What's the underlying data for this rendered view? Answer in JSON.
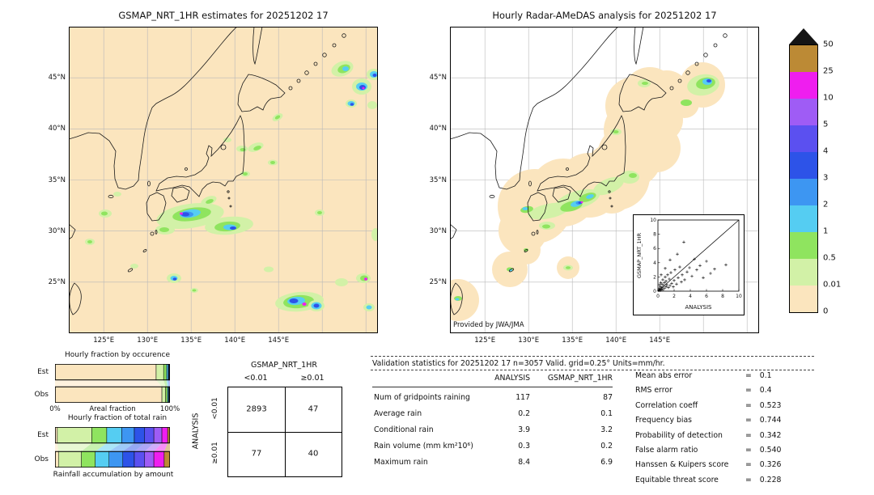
{
  "left_map": {
    "title": "GSMAP_NRT_1HR estimates for 20251202 17",
    "lat_labels": [
      "45°N",
      "40°N",
      "35°N",
      "30°N",
      "25°N"
    ],
    "lon_labels": [
      "125°E",
      "130°E",
      "135°E",
      "140°E",
      "145°E"
    ]
  },
  "right_map": {
    "title": "Hourly Radar-AMeDAS analysis for 20251202 17",
    "credit": "Provided by JWA/JMA",
    "lat_labels": [
      "45°N",
      "40°N",
      "35°N",
      "30°N",
      "25°N"
    ],
    "lon_labels": [
      "125°E",
      "130°E",
      "135°E",
      "140°E",
      "145°E"
    ]
  },
  "colorbar": {
    "unit": "mm/hr"
  },
  "occurrence": {
    "title": "Hourly fraction by occurence",
    "row_labels": [
      "Est",
      "Obs"
    ],
    "axis_left": "0%",
    "axis_label": "Areal fraction",
    "axis_right": "100%"
  },
  "totalrain": {
    "title": "Hourly fraction of total rain",
    "row_labels": [
      "Est",
      "Obs"
    ],
    "caption": "Rainfall accumulation by amount"
  },
  "contingency": {
    "col_axis": "GSMAP_NRT_1HR",
    "row_axis": "ANALYSIS",
    "col_headers": [
      "<0.01",
      "≥0.01"
    ],
    "row_headers": [
      "<0.01",
      "≥0.01"
    ]
  },
  "stats": {
    "title": "Validation statistics for 20251202 17  n=3057 Valid. grid=0.25° Units=mm/hr.",
    "eq": "="
  },
  "chart_data": [
    {
      "type": "heatmap",
      "title": "GSMAP_NRT_1HR estimates for 20251202 17",
      "xlabel": "longitude",
      "ylabel": "latitude",
      "x_ticks": [
        "125°E",
        "130°E",
        "135°E",
        "140°E",
        "145°E"
      ],
      "y_ticks": [
        "45°N",
        "40°N",
        "35°N",
        "30°N",
        "25°N"
      ],
      "units": "mm/hr",
      "scale": {
        "thresholds": [
          0,
          0.01,
          0.5,
          1,
          2,
          3,
          4,
          5,
          10,
          25,
          50
        ],
        "colors": [
          "#FBE5BE",
          "#D2F1A7",
          "#8FE45F",
          "#55CDF2",
          "#3D96F2",
          "#2D53E8",
          "#5B50F0",
          "#9F5CF5",
          "#EF1EEF",
          "#BC8A35"
        ],
        "over_color": "#151515"
      },
      "description": "Scattered rain cells over SW Japan, the Pacific south of Japan and NE of Hokkaido; pale-green patches with green/cyan/blue cores and isolated magenta maxima on a cream zero-rain background."
    },
    {
      "type": "heatmap",
      "title": "Hourly Radar-AMeDAS analysis for 20251202 17",
      "credit": "Provided by JWA/JMA",
      "xlabel": "longitude",
      "ylabel": "latitude",
      "x_ticks": [
        "125°E",
        "130°E",
        "135°E",
        "140°E",
        "145°E"
      ],
      "y_ticks": [
        "45°N",
        "40°N",
        "35°N",
        "30°N",
        "25°N"
      ],
      "units": "mm/hr",
      "scale": {
        "thresholds": [
          0,
          0.01,
          0.5,
          1,
          2,
          3,
          4,
          5,
          10,
          25,
          50
        ],
        "colors": [
          "#FBE5BE",
          "#D2F1A7",
          "#8FE45F",
          "#55CDF2",
          "#3D96F2",
          "#2D53E8",
          "#5B50F0",
          "#9F5CF5",
          "#EF1EEF",
          "#BC8A35"
        ],
        "over_color": "#151515"
      },
      "description": "Radar-AMeDAS analysis shown only inside cream radar-coverage circles around the Japanese archipelago; a green rain band with cyan/blue cores runs along the Pacific coast from Kyushu to Kanto, plus a cell NE of Hokkaido; white background outside coverage."
    },
    {
      "type": "scatter",
      "xlabel": "ANALYSIS",
      "ylabel": "GSMAP_NRT_1HR",
      "xlim": [
        0,
        10
      ],
      "ylim": [
        0,
        10
      ],
      "ticks": [
        0,
        2,
        4,
        6,
        8,
        10
      ],
      "marker": "+",
      "diagonal": true,
      "points": [
        [
          0.1,
          0.1
        ],
        [
          0.15,
          0.4
        ],
        [
          0.2,
          0.2
        ],
        [
          0.2,
          0.9
        ],
        [
          0.3,
          0.1
        ],
        [
          0.3,
          0.6
        ],
        [
          0.35,
          1.2
        ],
        [
          0.4,
          0.3
        ],
        [
          0.5,
          0.5
        ],
        [
          0.5,
          1.0
        ],
        [
          0.6,
          0.2
        ],
        [
          0.6,
          1.6
        ],
        [
          0.7,
          0.8
        ],
        [
          0.8,
          0.4
        ],
        [
          0.8,
          1.2
        ],
        [
          0.9,
          2.0
        ],
        [
          1.0,
          0.6
        ],
        [
          1.0,
          1.4
        ],
        [
          1.1,
          0.9
        ],
        [
          1.2,
          2.3
        ],
        [
          1.3,
          0.5
        ],
        [
          1.4,
          1.7
        ],
        [
          1.5,
          0.8
        ],
        [
          1.6,
          2.6
        ],
        [
          1.7,
          1.1
        ],
        [
          1.9,
          0.6
        ],
        [
          2.0,
          1.5
        ],
        [
          2.1,
          3.0
        ],
        [
          2.3,
          1.0
        ],
        [
          2.4,
          5.2
        ],
        [
          2.5,
          1.9
        ],
        [
          2.7,
          3.4
        ],
        [
          2.9,
          1.3
        ],
        [
          3.0,
          2.3
        ],
        [
          3.2,
          6.9
        ],
        [
          3.3,
          1.6
        ],
        [
          3.6,
          2.7
        ],
        [
          3.9,
          3.3
        ],
        [
          4.2,
          2.1
        ],
        [
          4.5,
          4.5
        ],
        [
          4.8,
          3.0
        ],
        [
          5.2,
          3.6
        ],
        [
          5.6,
          1.9
        ],
        [
          6.0,
          4.2
        ],
        [
          6.5,
          2.5
        ],
        [
          7.0,
          3.1
        ],
        [
          8.4,
          3.7
        ],
        [
          1.5,
          4.4
        ],
        [
          0.9,
          3.2
        ],
        [
          0.4,
          2.3
        ]
      ]
    },
    {
      "type": "table",
      "title": "Contingency table (number of gridpoints)",
      "col_axis": "GSMAP_NRT_1HR",
      "row_axis": "ANALYSIS",
      "col_headers": [
        "<0.01",
        "≥0.01"
      ],
      "row_headers": [
        "<0.01",
        "≥0.01"
      ],
      "cells": [
        [
          "2893",
          "47"
        ],
        [
          "77",
          "40"
        ]
      ]
    },
    {
      "type": "bar",
      "title": "Hourly fraction by occurence",
      "stacked": true,
      "orientation": "horizontal",
      "xlabel": "Areal fraction",
      "xlim": [
        "0%",
        "100%"
      ],
      "categories": [
        "Est",
        "Obs"
      ],
      "class_edges": [
        0,
        0.01,
        0.5,
        1,
        2,
        3,
        4,
        5,
        10,
        25,
        50
      ],
      "series_colors": [
        "#FBE5BE",
        "#D2F1A7",
        "#8FE45F",
        "#55CDF2",
        "#3D96F2",
        "#2D53E8",
        "#5B50F0",
        "#9F5CF5",
        "#EF1EEF",
        "#BC8A35"
      ],
      "rows": [
        {
          "name": "Est",
          "pcts": [
            88,
            6.5,
            2.5,
            1.2,
            0.8,
            0.5,
            0.3,
            0.2,
            0,
            0
          ]
        },
        {
          "name": "Obs",
          "pcts": [
            93,
            3.2,
            1.6,
            0.9,
            0.5,
            0.4,
            0.2,
            0.2,
            0,
            0
          ]
        }
      ]
    },
    {
      "type": "bar",
      "title": "Hourly fraction of total rain",
      "stacked": true,
      "orientation": "horizontal",
      "xlabel": "Rainfall accumulation by amount",
      "categories": [
        "Est",
        "Obs"
      ],
      "class_edges": [
        0,
        0.01,
        0.5,
        1,
        2,
        3,
        4,
        5,
        10,
        25,
        50
      ],
      "series_colors": [
        "#FBE5BE",
        "#D2F1A7",
        "#8FE45F",
        "#55CDF2",
        "#3D96F2",
        "#2D53E8",
        "#5B50F0",
        "#9F5CF5",
        "#EF1EEF",
        "#BC8A35"
      ],
      "rows": [
        {
          "name": "Est",
          "pcts": [
            2,
            30,
            13,
            13,
            11,
            9,
            8,
            7,
            5,
            2
          ]
        },
        {
          "name": "Obs",
          "pcts": [
            3,
            20,
            12,
            12,
            12,
            10,
            9,
            8,
            9,
            5
          ]
        }
      ]
    },
    {
      "type": "table",
      "title": "Validation statistics for 20251202 17  n=3057 Valid. grid=0.25° Units=mm/hr.",
      "col_headers": [
        "ANALYSIS",
        "GSMAP_NRT_1HR"
      ],
      "rows": [
        {
          "label": "Num of gridpoints raining",
          "values": [
            "117",
            "87"
          ]
        },
        {
          "label": "Average rain",
          "values": [
            "0.2",
            "0.1"
          ]
        },
        {
          "label": "Conditional rain",
          "values": [
            "3.9",
            "3.2"
          ]
        },
        {
          "label": "Rain volume (mm km²10⁶)",
          "values": [
            "0.3",
            "0.2"
          ]
        },
        {
          "label": "Maximum rain",
          "values": [
            "8.4",
            "6.9"
          ]
        }
      ],
      "metrics": [
        {
          "label": "Mean abs error",
          "value": "0.1"
        },
        {
          "label": "RMS error",
          "value": "0.4"
        },
        {
          "label": "Correlation coeff",
          "value": "0.523"
        },
        {
          "label": "Frequency bias",
          "value": "0.744"
        },
        {
          "label": "Probability of detection",
          "value": "0.342"
        },
        {
          "label": "False alarm ratio",
          "value": "0.540"
        },
        {
          "label": "Hanssen & Kuipers score",
          "value": "0.326"
        },
        {
          "label": "Equitable threat score",
          "value": "0.228"
        }
      ]
    }
  ]
}
